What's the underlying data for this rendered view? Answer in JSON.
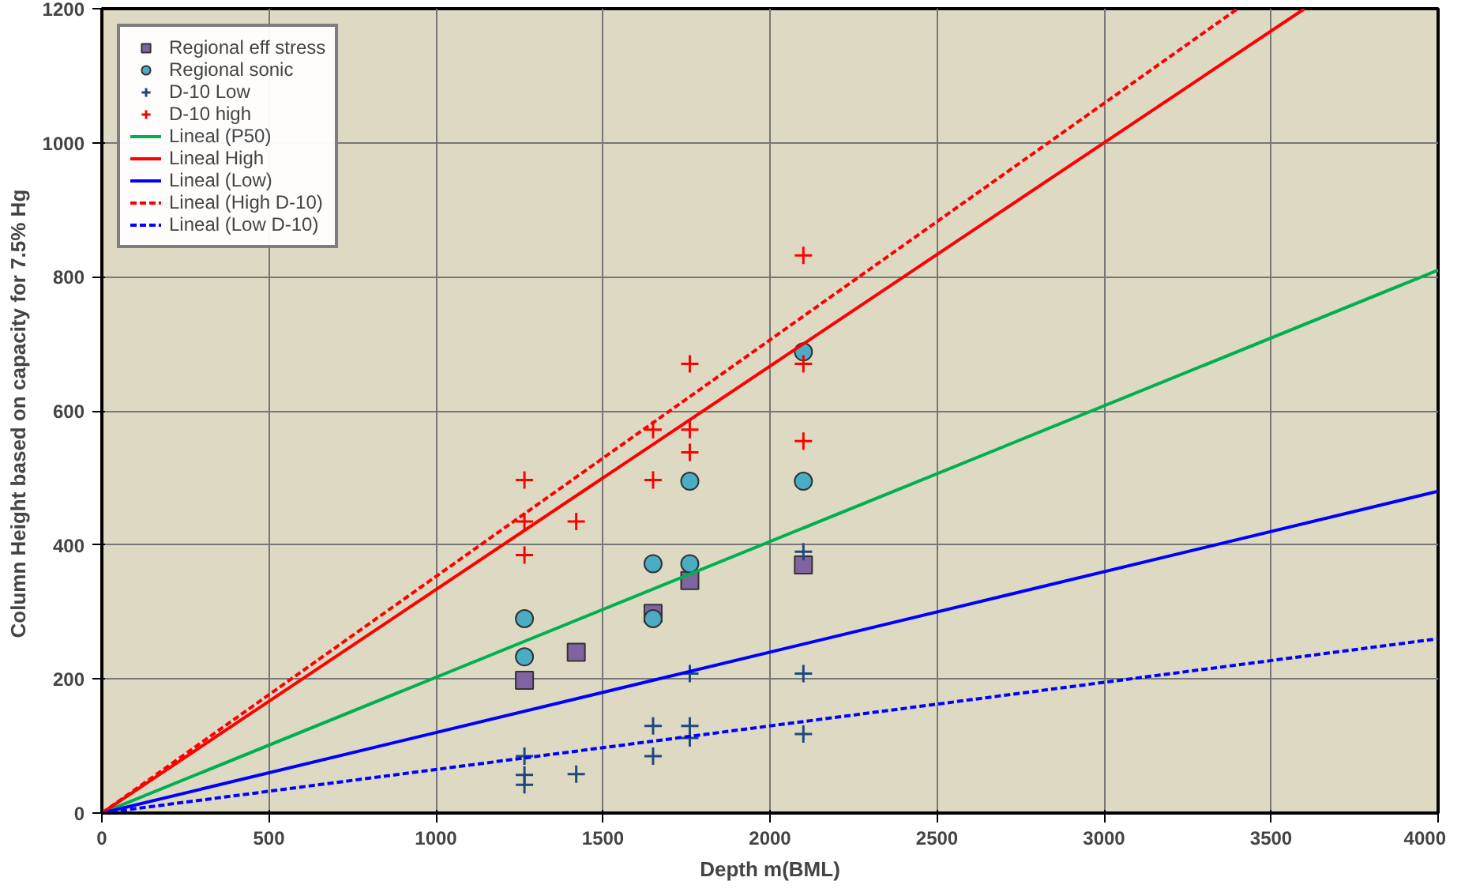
{
  "chart_data": {
    "type": "scatter",
    "xlabel": "Depth m(BML)",
    "ylabel": "Column Height based on capacity for  7.5% Hg",
    "xlim": [
      0,
      4000
    ],
    "ylim": [
      0,
      1200
    ],
    "xticks": [
      0,
      500,
      1000,
      1500,
      2000,
      2500,
      3000,
      3500,
      4000
    ],
    "yticks": [
      0,
      200,
      400,
      600,
      800,
      1000,
      1200
    ],
    "grid": true,
    "legend": "top left",
    "series": [
      {
        "name": "Regional eff stress",
        "color": "#8064a2",
        "marker": "square",
        "x": [
          1265,
          1420,
          1650,
          1760,
          2100
        ],
        "values": [
          198,
          240,
          298,
          347,
          370
        ]
      },
      {
        "name": "Regional sonic",
        "color": "#4bacc6",
        "marker": "circle",
        "x": [
          1265,
          1265,
          1650,
          1650,
          1760,
          1760,
          2100,
          2100
        ],
        "values": [
          290,
          233,
          372,
          290,
          372,
          495,
          495,
          688
        ]
      },
      {
        "name": "D-10 Low",
        "color": "#1f497d",
        "marker": "cross",
        "x": [
          1265,
          1265,
          1265,
          1420,
          1650,
          1650,
          1760,
          1760,
          1760,
          2100,
          2100,
          2100
        ],
        "values": [
          85,
          57,
          42,
          58,
          130,
          85,
          208,
          130,
          112,
          390,
          208,
          118
        ]
      },
      {
        "name": "D-10 high",
        "color": "#ff0000",
        "marker": "cross",
        "x": [
          1265,
          1265,
          1265,
          1420,
          1650,
          1650,
          1760,
          1760,
          1760,
          2100,
          2100,
          2100
        ],
        "values": [
          497,
          435,
          385,
          435,
          572,
          497,
          670,
          572,
          538,
          832,
          670,
          555
        ]
      },
      {
        "name": "Lineal (P50)",
        "type": "line",
        "color": "#00b050",
        "line_style": "solid",
        "x": [
          0,
          4000
        ],
        "values": [
          0,
          810
        ]
      },
      {
        "name": "Lineal High",
        "type": "line",
        "color": "#ff0000",
        "line_style": "solid",
        "x": [
          0,
          3600
        ],
        "values": [
          0,
          1200
        ]
      },
      {
        "name": "Lineal (Low)",
        "type": "line",
        "color": "#0000ff",
        "line_style": "solid",
        "x": [
          0,
          4000
        ],
        "values": [
          0,
          480
        ]
      },
      {
        "name": "Lineal (High D-10)",
        "type": "line",
        "color": "#ff0000",
        "line_style": "dashed",
        "x": [
          0,
          3400
        ],
        "values": [
          0,
          1200
        ]
      },
      {
        "name": "Lineal (Low D-10)",
        "type": "line",
        "color": "#0000ff",
        "line_style": "dashed",
        "x": [
          0,
          4000
        ],
        "values": [
          0,
          260
        ]
      }
    ]
  }
}
